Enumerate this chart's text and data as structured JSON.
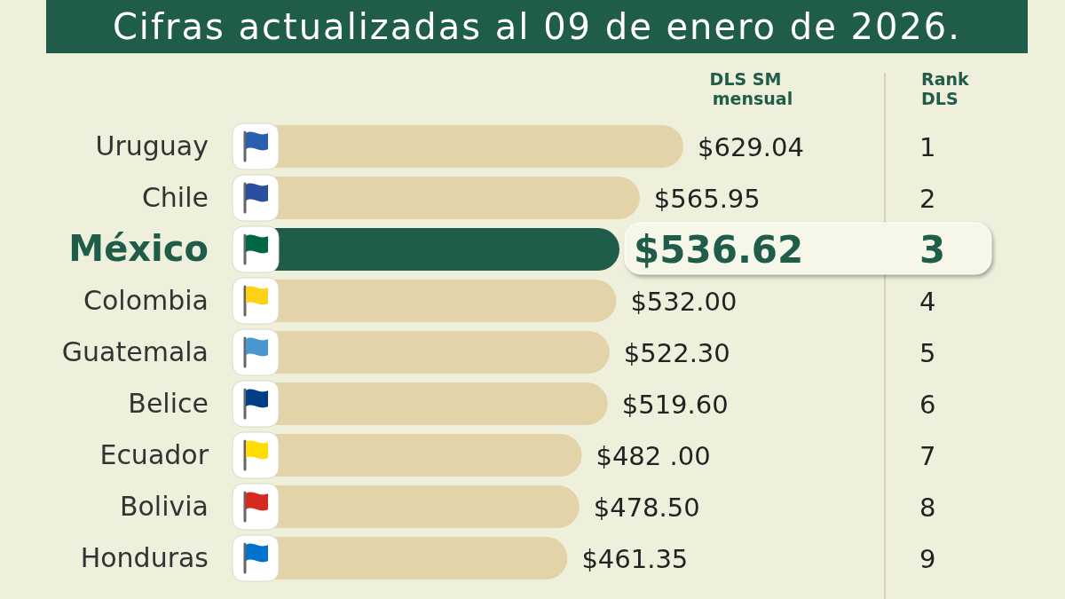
{
  "chart_data": {
    "type": "bar",
    "orientation": "horizontal",
    "title": "Cifras actualizadas al 09 de enero de 2026.",
    "categories": [
      "Uruguay",
      "Chile",
      "México",
      "Colombia",
      "Guatemala",
      "Belice",
      "Ecuador",
      "Bolivia",
      "Honduras"
    ],
    "values": [
      629.04,
      565.95,
      536.62,
      532.0,
      522.3,
      519.6,
      482.0,
      478.5,
      461.35
    ],
    "colors": [
      "#e3d3a8",
      "#e3d3a8",
      "#1f5c4a",
      "#e3d3a8",
      "#e3d3a8",
      "#e3d3a8",
      "#e3d3a8",
      "#e3d3a8",
      "#e3d3a8"
    ],
    "value_labels": [
      "$629.04",
      "$565.95",
      "$536.62",
      "$532.00",
      "$522.30",
      "$519.60",
      "$482 .00",
      "$478.50",
      "$461.35"
    ],
    "annotations": [
      "DLS SM mensual",
      "Rank DLS",
      "1",
      "2",
      "3",
      "4",
      "5",
      "6",
      "7",
      "8",
      "9"
    ]
  }
}
